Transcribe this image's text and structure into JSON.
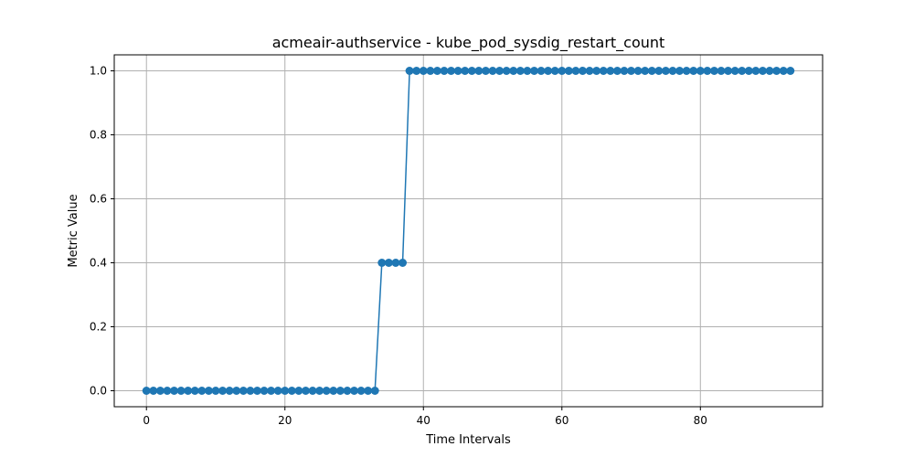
{
  "chart_data": {
    "type": "line",
    "title": "acmeair-authservice - kube_pod_sysdig_restart_count",
    "xlabel": "Time Intervals",
    "ylabel": "Metric Value",
    "xlim": [
      -4.65,
      97.65
    ],
    "ylim": [
      -0.05,
      1.05
    ],
    "x_ticks": [
      0,
      20,
      40,
      60,
      80
    ],
    "y_ticks": [
      "0.0",
      "0.2",
      "0.4",
      "0.6",
      "0.8",
      "1.0"
    ],
    "grid": true,
    "series_color": "#1f77b4",
    "series": [
      {
        "marker": "circle",
        "x": [
          0,
          1,
          2,
          3,
          4,
          5,
          6,
          7,
          8,
          9,
          10,
          11,
          12,
          13,
          14,
          15,
          16,
          17,
          18,
          19,
          20,
          21,
          22,
          23,
          24,
          25,
          26,
          27,
          28,
          29,
          30,
          31,
          32,
          33,
          34,
          35,
          36,
          37,
          38,
          39,
          40,
          41,
          42,
          43,
          44,
          45,
          46,
          47,
          48,
          49,
          50,
          51,
          52,
          53,
          54,
          55,
          56,
          57,
          58,
          59,
          60,
          61,
          62,
          63,
          64,
          65,
          66,
          67,
          68,
          69,
          70,
          71,
          72,
          73,
          74,
          75,
          76,
          77,
          78,
          79,
          80,
          81,
          82,
          83,
          84,
          85,
          86,
          87,
          88,
          89,
          90,
          91,
          92,
          93
        ],
        "values": [
          0,
          0,
          0,
          0,
          0,
          0,
          0,
          0,
          0,
          0,
          0,
          0,
          0,
          0,
          0,
          0,
          0,
          0,
          0,
          0,
          0,
          0,
          0,
          0,
          0,
          0,
          0,
          0,
          0,
          0,
          0,
          0,
          0,
          0,
          0.4,
          0.4,
          0.4,
          0.4,
          1,
          1,
          1,
          1,
          1,
          1,
          1,
          1,
          1,
          1,
          1,
          1,
          1,
          1,
          1,
          1,
          1,
          1,
          1,
          1,
          1,
          1,
          1,
          1,
          1,
          1,
          1,
          1,
          1,
          1,
          1,
          1,
          1,
          1,
          1,
          1,
          1,
          1,
          1,
          1,
          1,
          1,
          1,
          1,
          1,
          1,
          1,
          1,
          1,
          1,
          1,
          1,
          1,
          1,
          1,
          1
        ]
      }
    ]
  }
}
